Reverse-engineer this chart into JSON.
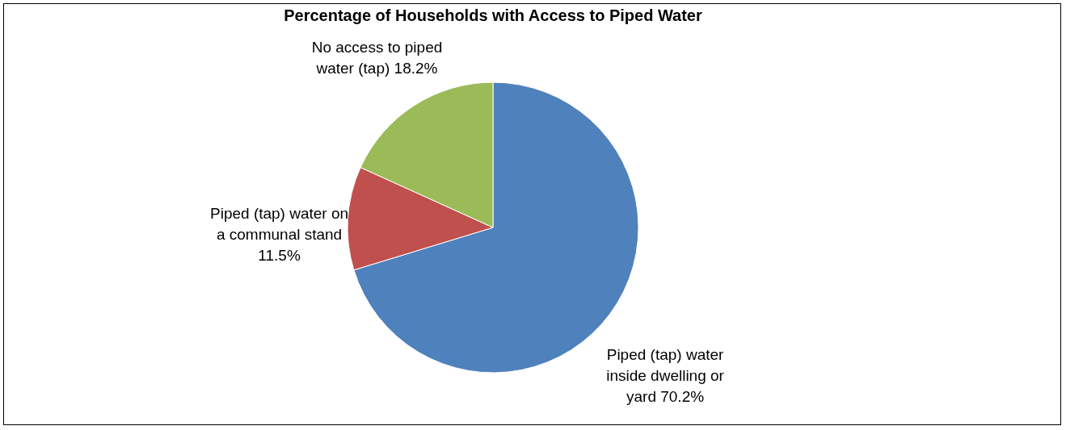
{
  "chart_data": {
    "type": "pie",
    "title": "Percentage of Households with Access to Piped Water",
    "categories": [
      "Piped (tap) water inside dwelling or yard",
      "Piped (tap) water on a communal stand",
      "No access to piped water (tap)"
    ],
    "values": [
      70.2,
      11.5,
      18.2
    ],
    "value_labels": [
      "70.2%",
      "11.5%",
      "18.2%"
    ],
    "colors": [
      "#4f81bd",
      "#c0504d",
      "#9bbb59"
    ],
    "legend": false
  }
}
